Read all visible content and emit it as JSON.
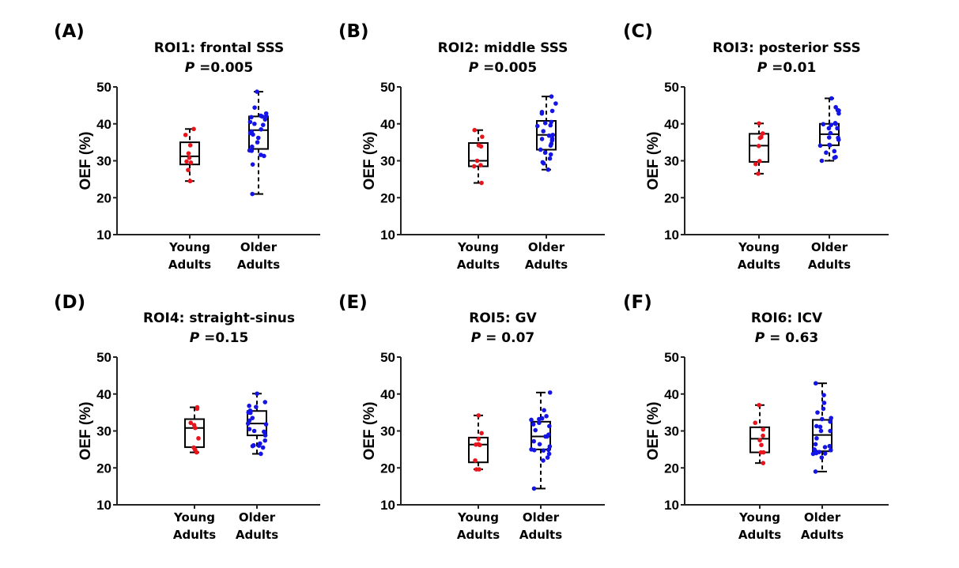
{
  "figure": {
    "background": "#ffffff",
    "colors": {
      "young": "#e8141c",
      "older": "#1414e6",
      "box": "#000000"
    }
  },
  "chart_data": [
    {
      "type": "box",
      "panel": "(A)",
      "title": "ROI1: frontal SSS",
      "p_label": "P",
      "p_value": " =0.005",
      "ylabel": "OEF (%)",
      "xlabel": "",
      "ylim": [
        10,
        50
      ],
      "yticks": [
        10,
        20,
        30,
        40,
        50
      ],
      "categories": [
        "Young Adults",
        "Older Adults"
      ],
      "category_lines": [
        [
          "Young",
          "Adults"
        ],
        [
          "Older",
          "Adults"
        ]
      ],
      "series": [
        {
          "name": "Young Adults",
          "whisker_low": 24.5,
          "q1": 29.0,
          "median": 31.2,
          "q3": 35.0,
          "whisker_high": 38.6,
          "points": [
            38.6,
            37.0,
            34.2,
            32.0,
            30.8,
            29.5,
            29.8,
            27.5,
            24.5
          ]
        },
        {
          "name": "Older Adults",
          "whisker_low": 21.0,
          "q1": 33.2,
          "median": 38.3,
          "q3": 42.0,
          "whisker_high": 48.7,
          "points": [
            48.7,
            44.4,
            42.8,
            42.2,
            42.1,
            42.0,
            41.8,
            41.2,
            40.5,
            40.0,
            39.7,
            38.5,
            37.9,
            37.5,
            37.1,
            36.2,
            35.0,
            33.8,
            32.8,
            32.7,
            31.6,
            31.3,
            29.0,
            21.0
          ]
        }
      ]
    },
    {
      "type": "box",
      "panel": "(B)",
      "title": "ROI2: middle SSS",
      "p_label": "P",
      "p_value": " =0.005",
      "ylabel": "OEF (%)",
      "xlabel": "",
      "ylim": [
        10,
        50
      ],
      "yticks": [
        10,
        20,
        30,
        40,
        50
      ],
      "categories": [
        "Young Adults",
        "Older Adults"
      ],
      "category_lines": [
        [
          "Young",
          "Adults"
        ],
        [
          "Older",
          "Adults"
        ]
      ],
      "series": [
        {
          "name": "Young Adults",
          "whisker_low": 24.0,
          "q1": 28.5,
          "median": 30.0,
          "q3": 34.8,
          "whisker_high": 38.3,
          "points": [
            38.3,
            36.5,
            34.2,
            33.9,
            30.0,
            28.8,
            28.5,
            24.0
          ]
        },
        {
          "name": "Older Adults",
          "whisker_low": 27.6,
          "q1": 33.0,
          "median": 37.0,
          "q3": 40.8,
          "whisker_high": 47.4,
          "points": [
            47.4,
            45.5,
            43.5,
            43.2,
            42.8,
            40.5,
            40.2,
            39.6,
            39.4,
            38.0,
            37.0,
            36.8,
            36.0,
            35.9,
            35.5,
            34.6,
            34.1,
            33.0,
            32.2,
            31.7,
            30.6,
            29.6,
            29.3,
            27.6
          ]
        }
      ]
    },
    {
      "type": "box",
      "panel": "(C)",
      "title": "ROI3: posterior SSS",
      "p_label": "P",
      "p_value": " =0.01",
      "ylabel": "OEF (%)",
      "xlabel": "",
      "ylim": [
        10,
        50
      ],
      "yticks": [
        10,
        20,
        30,
        40,
        50
      ],
      "categories": [
        "Young Adults",
        "Older Adults"
      ],
      "category_lines": [
        [
          "Young",
          "Adults"
        ],
        [
          "Older",
          "Adults"
        ]
      ],
      "series": [
        {
          "name": "Young Adults",
          "whisker_low": 26.5,
          "q1": 29.7,
          "median": 34.1,
          "q3": 37.3,
          "whisker_high": 40.1,
          "points": [
            40.1,
            37.4,
            36.4,
            36.2,
            34.0,
            29.9,
            29.1,
            26.5
          ]
        },
        {
          "name": "Older Adults",
          "whisker_low": 30.0,
          "q1": 34.2,
          "median": 37.2,
          "q3": 40.0,
          "whisker_high": 46.9,
          "points": [
            46.9,
            44.5,
            43.7,
            43.6,
            42.8,
            40.2,
            40.0,
            39.9,
            39.7,
            38.8,
            38.8,
            37.5,
            36.3,
            36.2,
            35.7,
            34.3,
            34.2,
            34.1,
            32.6,
            32.2,
            31.0,
            30.8,
            30.0
          ]
        }
      ]
    },
    {
      "type": "box",
      "panel": "(D)",
      "title": "ROI4: straight-sinus",
      "p_label": "P",
      "p_value": " =0.15",
      "ylabel": "OEF (%)",
      "xlabel": "",
      "ylim": [
        10,
        50
      ],
      "yticks": [
        10,
        20,
        30,
        40,
        50
      ],
      "categories": [
        "Young Adults",
        "Older Adults"
      ],
      "category_lines": [
        [
          "Young",
          "Adults"
        ],
        [
          "Older",
          "Adults"
        ]
      ],
      "series": [
        {
          "name": "Young Adults",
          "whisker_low": 24.2,
          "q1": 25.6,
          "median": 30.8,
          "q3": 33.2,
          "whisker_high": 36.4,
          "points": [
            36.4,
            36.0,
            32.2,
            31.6,
            30.8,
            28.0,
            25.5,
            24.9,
            24.2
          ]
        },
        {
          "name": "Older Adults",
          "whisker_low": 23.8,
          "q1": 28.8,
          "median": 32.0,
          "q3": 35.4,
          "whisker_high": 40.1,
          "points": [
            40.1,
            37.8,
            36.8,
            36.5,
            35.5,
            35.0,
            34.9,
            33.5,
            32.8,
            32.0,
            31.8,
            30.5,
            30.0,
            29.8,
            29.7,
            28.8,
            27.4,
            26.6,
            26.1,
            26.0,
            25.9,
            25.5,
            23.8
          ]
        }
      ]
    },
    {
      "type": "box",
      "panel": "(E)",
      "title": "ROI5: GV",
      "p_label": "P",
      "p_value": " = 0.07",
      "ylabel": "OEF (%)",
      "xlabel": "",
      "ylim": [
        10,
        50
      ],
      "yticks": [
        10,
        20,
        30,
        40,
        50
      ],
      "categories": [
        "Young Adults",
        "Older Adults"
      ],
      "category_lines": [
        [
          "Young",
          "Adults"
        ],
        [
          "Older",
          "Adults"
        ]
      ],
      "series": [
        {
          "name": "Young Adults",
          "whisker_low": 19.6,
          "q1": 21.5,
          "median": 26.3,
          "q3": 28.2,
          "whisker_high": 34.2,
          "points": [
            34.2,
            29.4,
            27.8,
            26.4,
            26.3,
            26.2,
            22.0,
            19.6,
            19.6
          ]
        },
        {
          "name": "Older Adults",
          "whisker_low": 14.4,
          "q1": 25.0,
          "median": 28.5,
          "q3": 32.5,
          "whisker_high": 40.4,
          "points": [
            40.4,
            35.6,
            34.0,
            33.4,
            33.2,
            33.0,
            32.2,
            31.8,
            31.3,
            30.2,
            29.0,
            28.5,
            28.5,
            27.2,
            26.4,
            25.8,
            25.0,
            24.9,
            24.8,
            24.7,
            23.8,
            22.8,
            22.0,
            14.4
          ]
        }
      ]
    },
    {
      "type": "box",
      "panel": "(F)",
      "title": "ROI6: ICV",
      "p_label": "P",
      "p_value": " = 0.63",
      "ylabel": "OEF (%)",
      "xlabel": "",
      "ylim": [
        10,
        50
      ],
      "yticks": [
        10,
        20,
        30,
        40,
        50
      ],
      "categories": [
        "Young Adults",
        "Older Adults"
      ],
      "category_lines": [
        [
          "Young",
          "Adults"
        ],
        [
          "Older",
          "Adults"
        ]
      ],
      "series": [
        {
          "name": "Young Adults",
          "whisker_low": 21.3,
          "q1": 24.2,
          "median": 27.9,
          "q3": 31.0,
          "whisker_high": 37.0,
          "points": [
            37.0,
            32.2,
            30.4,
            28.7,
            27.5,
            26.2,
            24.2,
            24.2,
            21.3
          ]
        },
        {
          "name": "Older Adults",
          "whisker_low": 19.0,
          "q1": 24.5,
          "median": 28.9,
          "q3": 33.0,
          "whisker_high": 42.9,
          "points": [
            42.9,
            39.7,
            37.6,
            36.0,
            35.0,
            33.5,
            33.2,
            32.5,
            31.3,
            31.1,
            30.0,
            30.0,
            28.0,
            26.4,
            25.9,
            25.6,
            25.0,
            24.8,
            24.5,
            24.3,
            24.0,
            23.8,
            23.9,
            22.8,
            19.0
          ]
        }
      ]
    }
  ]
}
